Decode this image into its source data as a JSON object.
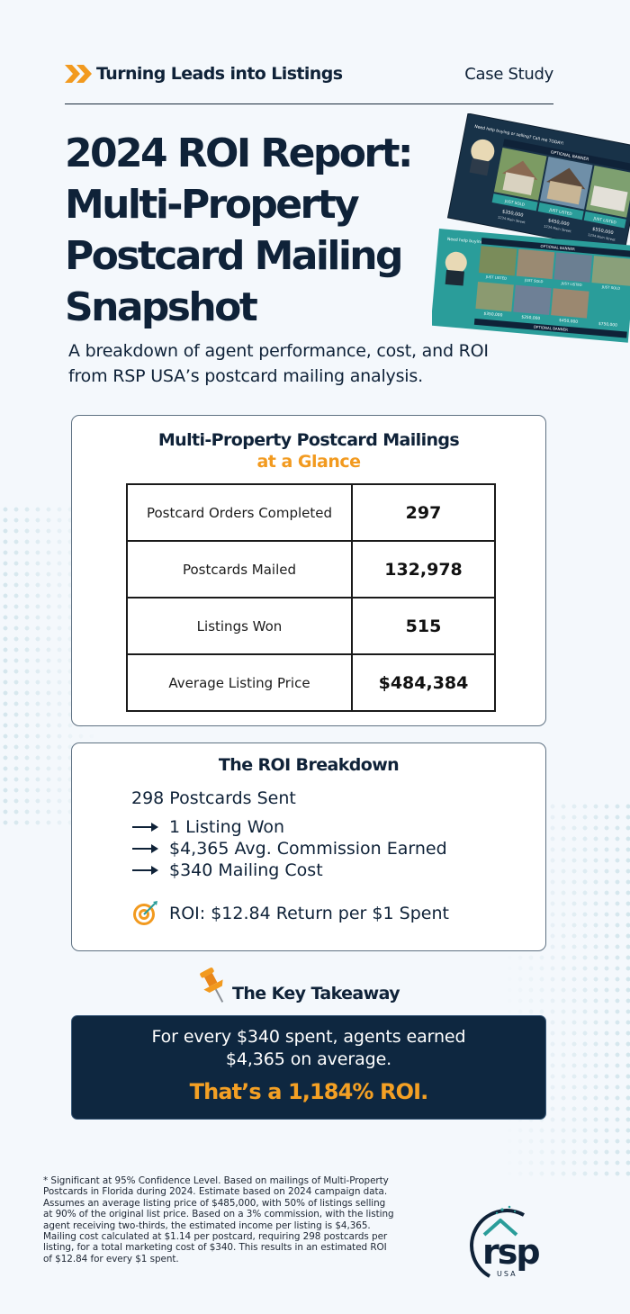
{
  "header": {
    "tagline": "Turning Leads into Listings",
    "case_study": "Case Study"
  },
  "title": {
    "lines": [
      "2024 ROI Report:",
      "Multi-Property",
      "Postcard Mailing",
      "Snapshot"
    ]
  },
  "subtitle": {
    "line1": "A breakdown of agent performance, cost, and ROI",
    "line2": "from RSP USA’s postcard mailing analysis."
  },
  "glance": {
    "title": "Multi-Property Postcard Mailings",
    "subtitle": "at a Glance",
    "rows": [
      {
        "label": "Postcard Orders Completed",
        "value": "297"
      },
      {
        "label": "Postcards Mailed",
        "value": "132,978"
      },
      {
        "label": "Listings Won",
        "value": "515"
      },
      {
        "label": "Average Listing Price",
        "value": "$484,384"
      }
    ]
  },
  "roi": {
    "title": "The ROI Breakdown",
    "sent": "298 Postcards Sent",
    "lines": [
      "1 Listing Won",
      "$4,365 Avg. Commission Earned",
      "$340 Mailing Cost"
    ],
    "result": "ROI: $12.84 Return per $1 Spent"
  },
  "takeaway": {
    "title": "The Key Takeaway",
    "line1": "For every $340 spent, agents earned",
    "line2": "$4,365 on average.",
    "roi": "That’s a 1,184% ROI."
  },
  "footnote": [
    "* Significant at 95% Confidence Level. Based on mailings of Multi-Property",
    "Postcards in Florida during 2024. Estimate based on 2024 campaign data.",
    "Assumes an average listing price of $485,000, with 50% of listings selling",
    "at 90% of the original list price. Based on a 3% commission, with the listing",
    "agent receiving two-thirds, the estimated income per listing is $4,365.",
    "Mailing cost calculated at $1.14 per postcard, requiring 298 postcards per",
    "listing, for a total marketing cost of $340. This results in an estimated ROI",
    "of $12.84 for every $1 spent."
  ],
  "postcard_sample": {
    "front_banner": "OPTIONAL BANNER",
    "front_headline": "Need help buying or selling? Call me TODAY!",
    "front_labels": [
      "JUST SOLD",
      "JUST LISTED",
      "JUST LISTED"
    ],
    "front_prices": [
      "$350,000",
      "$450,000",
      "$550,000"
    ],
    "front_address": "1234 Main Street",
    "back_banner": "OPTIONAL BANNER",
    "back_banner_bottom": "OPTIONAL BANNER",
    "back_headline": "Need help buying or selling? Call me TODAY!",
    "back_labels": [
      "JUST LISTED",
      "JUST SOLD",
      "JUST LISTED",
      "JUST SOLD"
    ],
    "back_prices": [
      "$350,000",
      "$250,000",
      "$450,000",
      "$750,000"
    ]
  },
  "logo": {
    "text": "rsp",
    "subtext": "USA"
  },
  "colors": {
    "navy": "#0f2238",
    "accent_orange": "#f29a1f",
    "teal": "#2a9d9a",
    "box_navy": "#0e2740"
  }
}
